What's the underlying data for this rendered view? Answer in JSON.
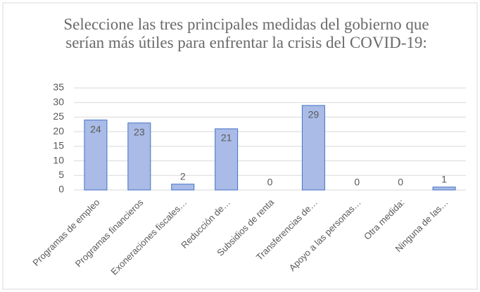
{
  "chart_data": {
    "type": "bar",
    "title": "Seleccione las tres principales medidas del gobierno que serían más útiles para enfrentar la crisis del COVID-19:",
    "categories": [
      "Programas de empleo",
      "Programas financieros",
      "Exoneraciones fiscales…",
      "Reducción de…",
      "Subsidios de renta",
      "Transferencias de…",
      "Apoyo a las personas…",
      "Otra medida:",
      "Ninguna de las…"
    ],
    "values": [
      24,
      23,
      2,
      21,
      0,
      29,
      0,
      0,
      1
    ],
    "color": "#a9bbe6",
    "ylim": [
      0,
      35
    ],
    "yticks": [
      0,
      5,
      10,
      15,
      20,
      25,
      30,
      35
    ],
    "grid": true
  }
}
